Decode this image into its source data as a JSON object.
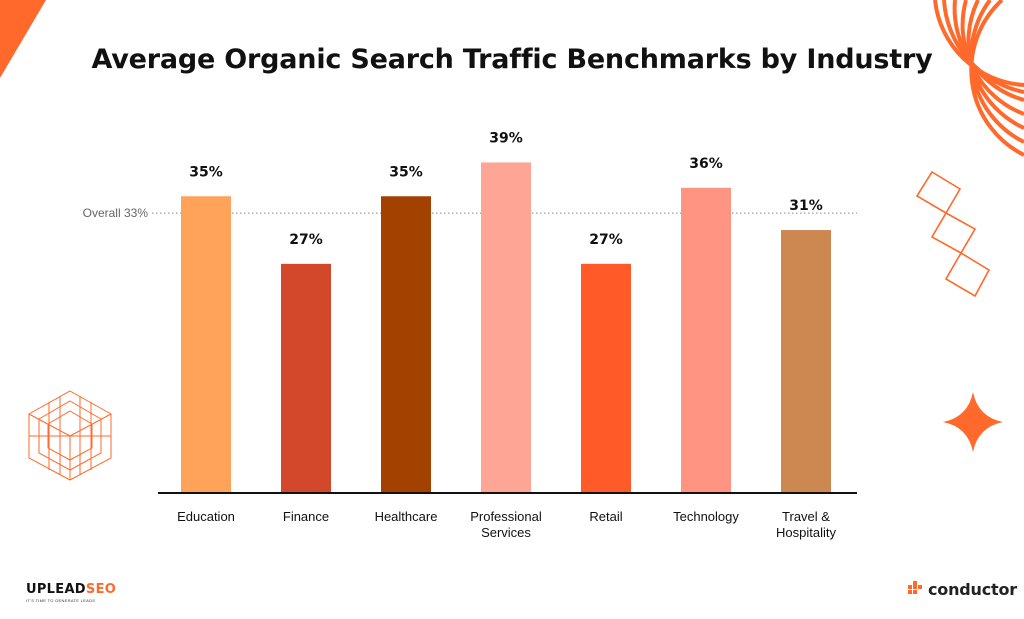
{
  "title": "Average Organic Search Traffic Benchmarks by Industry",
  "chart_data": {
    "type": "bar",
    "title": "Average Organic Search Traffic Benchmarks by Industry",
    "categories": [
      "Education",
      "Finance",
      "Healthcare",
      "Professional Services",
      "Retail",
      "Technology",
      "Travel & Hospitality"
    ],
    "category_lines": [
      [
        "Education"
      ],
      [
        "Finance"
      ],
      [
        "Healthcare"
      ],
      [
        "Professional",
        "Services"
      ],
      [
        "Retail"
      ],
      [
        "Technology"
      ],
      [
        "Travel &",
        "Hospitality"
      ]
    ],
    "values": [
      35,
      27,
      35,
      39,
      27,
      36,
      31
    ],
    "value_labels": [
      "35%",
      "27%",
      "35%",
      "39%",
      "27%",
      "36%",
      "31%"
    ],
    "bar_colors": [
      "#FFA25A",
      "#D3472A",
      "#A34200",
      "#FFA595",
      "#FF5A28",
      "#FF9482",
      "#CD8852"
    ],
    "reference_line": {
      "value": 33,
      "label": "Overall 33%"
    },
    "y_axis_visible": false,
    "grid": false,
    "legend": "none"
  },
  "logos": {
    "left_brand": "UPLEADSEO",
    "left_brand_a": "UPLEAD",
    "left_brand_b": "SEO",
    "left_tagline": "IT'S TIME TO GENERATE LEADS",
    "right_brand": "conductor"
  },
  "colors": {
    "accent_orange": "#FF6A2C",
    "baseline": "#111111",
    "reference_line": "#888888"
  },
  "decorations": [
    "corner-triangle-icon",
    "concentric-arcs-icon",
    "diamond-chain-icon",
    "hexagon-grid-icon",
    "four-point-star-icon"
  ]
}
